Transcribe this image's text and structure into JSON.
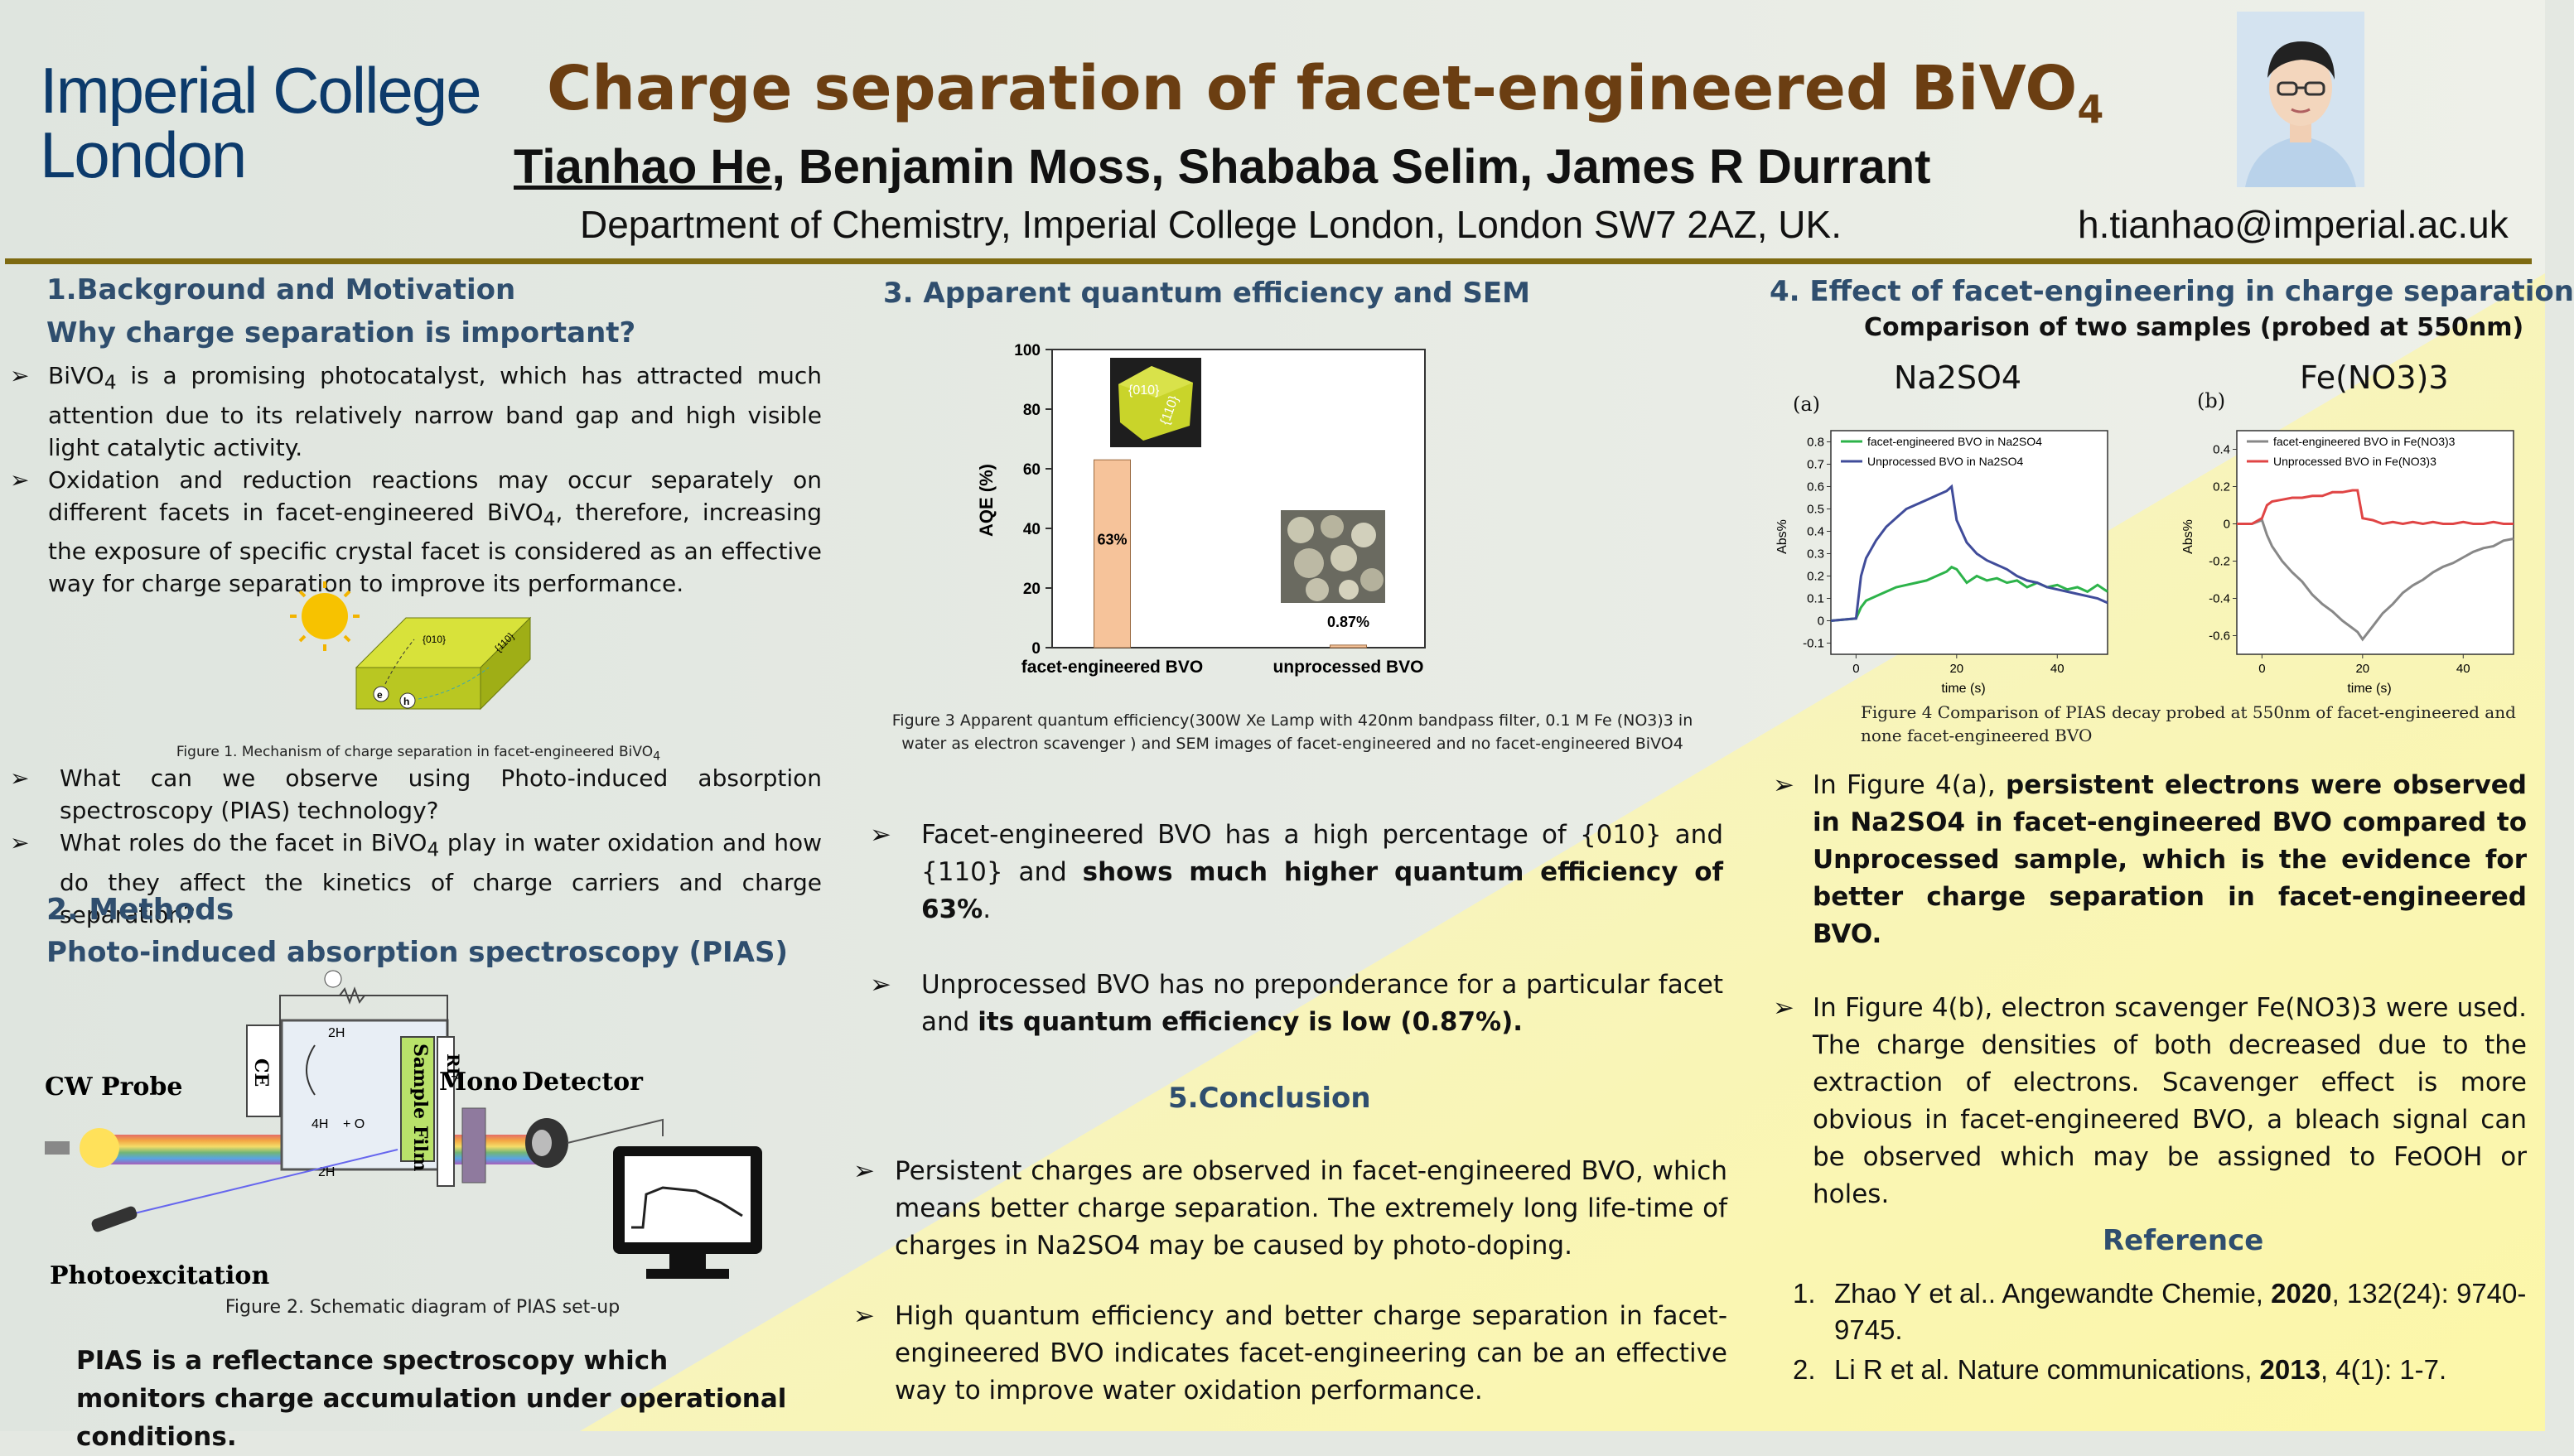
{
  "header": {
    "logo_line1": "Imperial College",
    "logo_line2": "London",
    "title": "Charge separation of facet-engineered BiVO",
    "title_sub": "4",
    "author_first": "Tianhao He",
    "authors_rest": ", Benjamin Moss, Shababa Selim, James R Durrant",
    "department": "Department of Chemistry, Imperial College London, London SW7 2AZ, UK.",
    "email": "h.tianhao@imperial.ac.uk"
  },
  "sec1": {
    "heading": "1.Background and Motivation",
    "subheading": "Why charge separation is important?",
    "b1_pre": "BiVO",
    "b1_sub": "4",
    "b1_post": " is a promising photocatalyst, which has attracted much attention due to its relatively narrow band gap and high visible light catalytic activity.",
    "b2_pre": "Oxidation and reduction reactions may occur separately on different facets in facet-engineered BiVO",
    "b2_sub": "4",
    "b2_post": ", therefore, increasing the exposure of specific crystal facet is considered as an effective way for charge separation to improve its performance.",
    "fig1_caption": "Figure 1. Mechanism of charge separation in facet-engineered  BiVO",
    "fig1_caption_sub": "4",
    "fig1_label_010": "{010}",
    "fig1_label_110": "{110}",
    "fig1_e": "e",
    "fig1_h": "h",
    "q1": "What can we observe using Photo-induced absorption spectroscopy (PIAS) technology?",
    "q2_pre": "What roles do the facet in BiVO",
    "q2_sub": "4",
    "q2_post": " play in water oxidation and how do they affect the kinetics of charge carriers and charge separation?"
  },
  "sec2": {
    "heading": "2. Methods",
    "subheading": "Photo-induced absorption spectroscopy (PIAS)",
    "label_cw": "CW Probe",
    "label_photo": "Photoexcitation",
    "label_mono": "Mono",
    "label_detector": "Detector",
    "label_ce": "CE",
    "label_re": "RE",
    "label_sample": "Sample Film",
    "label_h2": "2H",
    "label_4h": "4H",
    "label_o2": "+ O",
    "label_h2o": "2H",
    "fig2_caption": "Figure 2. Schematic diagram of PIAS set-up",
    "summary": "PIAS is a reflectance spectroscopy which monitors charge accumulation under operational conditions."
  },
  "sec3": {
    "heading": "3. Apparent quantum efficiency and SEM",
    "fig3_caption": "Figure 3 Apparent quantum efficiency(300W Xe Lamp with 420nm bandpass filter, 0.1 M Fe (NO3)3 in water as electron scavenger ) and  SEM images of facet-engineered and no facet-engineered BiVO4",
    "sem_010": "{010}",
    "sem_110": "{110}",
    "b1_pre": "Facet-engineered BVO has a high percentage of {010} and {110} and ",
    "b1_bold": "shows much higher quantum efficiency of 63%",
    "b1_post": ".",
    "b2_pre": "Unprocessed BVO has no preponderance for a particular facet and ",
    "b2_bold": "its quantum efficiency is low (0.87%).",
    "chart_data": {
      "type": "bar",
      "categories": [
        "facet-engineered BVO",
        "unprocessed BVO"
      ],
      "values": [
        63,
        0.87
      ],
      "data_labels": [
        "63%",
        "0.87%"
      ],
      "ylabel": "AQE (%)",
      "ylim": [
        0,
        100
      ],
      "yticks": [
        "0",
        "20",
        "40",
        "60",
        "80",
        "100"
      ],
      "bar_color": "#f6c39a"
    }
  },
  "sec5": {
    "heading": "5.Conclusion",
    "b1": "Persistent charges are observed in facet-engineered BVO, which means better charge separation. The extremely long life-time of charges in Na2SO4 may be caused by photo-doping.",
    "b2": "High quantum efficiency and better charge separation in facet-engineered BVO indicates facet-engineering can be an effective way to improve water oxidation performance."
  },
  "sec4": {
    "heading": "4. Effect of facet-engineering in charge separation",
    "subheading": "Comparison of two samples (probed at 550nm)",
    "panel_a_title": "Na2SO4",
    "panel_b_title": "Fe(NO3)3",
    "panel_a_label": "(a)",
    "panel_b_label": "(b)",
    "fig4_caption": "Figure 4 Comparison of PIAS decay probed at 550nm  of facet-engineered and none facet-engineered BVO",
    "b1_pre": "In Figure 4(a), ",
    "b1_bold": "persistent electrons were observed in Na2SO4 in facet-engineered BVO compared to Unprocessed sample, which is the evidence for better charge separation in facet-engineered BVO.",
    "b2": "In Figure 4(b), electron scavenger Fe(NO3)3 were used. The charge densities of both decreased due to the extraction of electrons. Scavenger effect is more obvious in facet-engineered BVO, a bleach signal can be observed which may be assigned to FeOOH or holes.",
    "chart_a": {
      "type": "line",
      "xlabel": "time (s)",
      "ylabel": "Abs%",
      "xticks": [
        "0",
        "20",
        "40"
      ],
      "yticks": [
        "0.8",
        "0.7",
        "0.6",
        "0.5",
        "0.4",
        "0.3",
        "0.2",
        "0.1",
        "0",
        "-0.1"
      ],
      "xlim": [
        -5,
        50
      ],
      "ylim": [
        -0.15,
        0.85
      ],
      "series": [
        {
          "name": "facet-engineered BVO in Na2SO4",
          "color": "#2db34a",
          "x": [
            -5,
            0,
            1,
            2,
            4,
            6,
            8,
            10,
            12,
            14,
            16,
            18,
            19,
            20,
            22,
            24,
            26,
            28,
            30,
            32,
            34,
            36,
            38,
            40,
            42,
            44,
            46,
            48,
            50
          ],
          "y": [
            0,
            0.01,
            0.06,
            0.09,
            0.11,
            0.13,
            0.15,
            0.16,
            0.17,
            0.18,
            0.2,
            0.22,
            0.24,
            0.23,
            0.17,
            0.2,
            0.18,
            0.19,
            0.17,
            0.18,
            0.15,
            0.17,
            0.15,
            0.16,
            0.14,
            0.15,
            0.13,
            0.16,
            0.13
          ]
        },
        {
          "name": "Unprocessed BVO in Na2SO4",
          "color": "#404c9a",
          "x": [
            -5,
            0,
            1,
            2,
            4,
            6,
            8,
            10,
            12,
            14,
            16,
            18,
            19,
            20,
            22,
            24,
            26,
            28,
            30,
            32,
            34,
            36,
            38,
            40,
            42,
            44,
            46,
            48,
            50
          ],
          "y": [
            0,
            0.01,
            0.2,
            0.28,
            0.36,
            0.42,
            0.46,
            0.5,
            0.52,
            0.54,
            0.56,
            0.58,
            0.6,
            0.45,
            0.35,
            0.3,
            0.27,
            0.25,
            0.23,
            0.2,
            0.18,
            0.17,
            0.15,
            0.14,
            0.13,
            0.12,
            0.11,
            0.1,
            0.08
          ]
        }
      ]
    },
    "chart_b": {
      "type": "line",
      "xlabel": "time (s)",
      "ylabel": "Abs%",
      "xticks": [
        "0",
        "20",
        "40"
      ],
      "yticks": [
        "0.4",
        "0.2",
        "0",
        "-0.2",
        "-0.4",
        "-0.6"
      ],
      "xlim": [
        -5,
        50
      ],
      "ylim": [
        -0.7,
        0.5
      ],
      "series": [
        {
          "name": "facet-engineered BVO in Fe(NO3)3",
          "color": "#888888",
          "x": [
            -5,
            -2,
            0,
            1,
            2,
            4,
            6,
            8,
            10,
            12,
            14,
            16,
            18,
            19,
            20,
            22,
            24,
            26,
            28,
            30,
            32,
            34,
            36,
            38,
            40,
            42,
            44,
            46,
            48,
            50
          ],
          "y": [
            0,
            0,
            0.02,
            -0.06,
            -0.12,
            -0.2,
            -0.26,
            -0.31,
            -0.38,
            -0.43,
            -0.47,
            -0.52,
            -0.56,
            -0.58,
            -0.62,
            -0.55,
            -0.48,
            -0.43,
            -0.37,
            -0.33,
            -0.3,
            -0.26,
            -0.23,
            -0.21,
            -0.18,
            -0.15,
            -0.13,
            -0.12,
            -0.09,
            -0.08
          ]
        },
        {
          "name": "Unprocessed BVO in Fe(NO3)3",
          "color": "#e04545",
          "x": [
            -5,
            -2,
            0,
            1,
            2,
            4,
            6,
            8,
            10,
            12,
            14,
            16,
            18,
            19,
            20,
            22,
            24,
            26,
            28,
            30,
            32,
            34,
            36,
            38,
            40,
            42,
            44,
            46,
            48,
            50
          ],
          "y": [
            0,
            0,
            0.03,
            0.1,
            0.12,
            0.13,
            0.14,
            0.14,
            0.15,
            0.15,
            0.17,
            0.17,
            0.18,
            0.18,
            0.03,
            0.02,
            0,
            0.01,
            0,
            0.01,
            0,
            0.01,
            0,
            0,
            0.01,
            0,
            0,
            0.01,
            0,
            0
          ]
        }
      ]
    }
  },
  "reference": {
    "heading": "Reference",
    "r1_pre": "Zhao Y et al.. Angewandte Chemie, ",
    "r1_year": "2020",
    "r1_post": ", 132(24): 9740-9745.",
    "r2_pre": "Li R et al. Nature communications, ",
    "r2_year": "2013",
    "r2_post": ", 4(1): 1-7."
  }
}
